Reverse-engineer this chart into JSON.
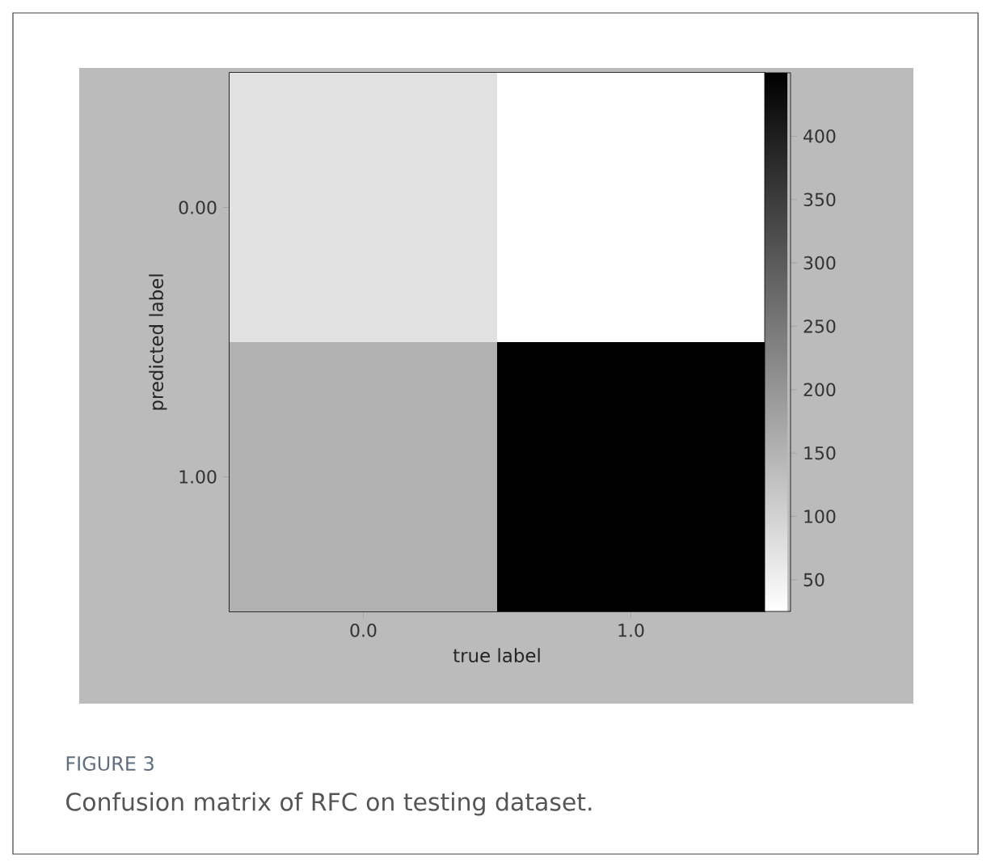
{
  "chart_data": {
    "type": "heatmap",
    "xlabel": "true label",
    "ylabel": "predicted label",
    "categories": [
      "0.0",
      "1.0"
    ],
    "y_categories": [
      "0.00",
      "1.00"
    ],
    "cells": [
      [
        75,
        25
      ],
      [
        155,
        450
      ]
    ],
    "clim": [
      25,
      450
    ],
    "cticks": [
      50,
      100,
      150,
      200,
      250,
      300,
      350,
      400
    ],
    "annotations": [
      "FIGURE 3",
      "Confusion matrix of RFC on testing dataset."
    ]
  }
}
